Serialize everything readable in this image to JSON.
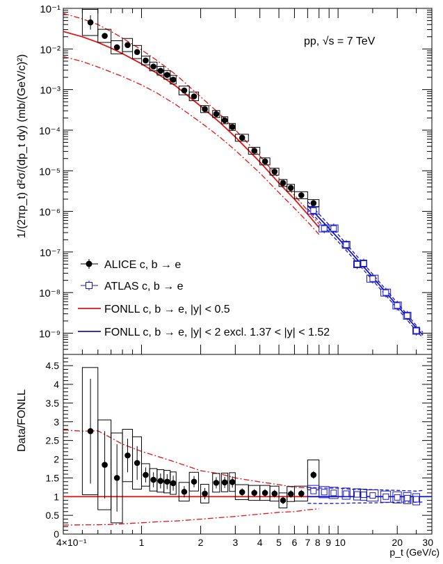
{
  "chart_data": [
    {
      "type": "scatter",
      "panel": "top",
      "annotation": "pp, √s = 7 TeV",
      "xlabel": "",
      "ylabel": "1/(2πp_t) d²σ/(dp_t dy) (mb/(GeV/c)²)",
      "xscale": "log",
      "yscale": "log",
      "xlim": [
        0.4,
        30
      ],
      "ylim": [
        3e-10,
        0.1
      ],
      "ytick_labels": [
        "10⁻⁹",
        "10⁻⁸",
        "10⁻⁷",
        "10⁻⁶",
        "10⁻⁵",
        "10⁻⁴",
        "10⁻³",
        "10⁻²",
        "10⁻¹"
      ],
      "legend_position": "bottom-left",
      "series": [
        {
          "name": "ALICE c, b → e",
          "marker": "filled-circle",
          "color": "#000000",
          "points": [
            {
              "x": 0.55,
              "y": 0.045
            },
            {
              "x": 0.65,
              "y": 0.021
            },
            {
              "x": 0.75,
              "y": 0.011
            },
            {
              "x": 0.85,
              "y": 0.0125
            },
            {
              "x": 0.95,
              "y": 0.0084
            },
            {
              "x": 1.05,
              "y": 0.0052
            },
            {
              "x": 1.15,
              "y": 0.0037
            },
            {
              "x": 1.25,
              "y": 0.0029
            },
            {
              "x": 1.35,
              "y": 0.0023
            },
            {
              "x": 1.45,
              "y": 0.00175
            },
            {
              "x": 1.65,
              "y": 0.00095
            },
            {
              "x": 1.85,
              "y": 0.00068
            },
            {
              "x": 2.1,
              "y": 0.00033
            },
            {
              "x": 2.4,
              "y": 0.00025
            },
            {
              "x": 2.65,
              "y": 0.000175
            },
            {
              "x": 2.9,
              "y": 0.00012
            },
            {
              "x": 3.25,
              "y": 6.5e-05
            },
            {
              "x": 3.75,
              "y": 3.1e-05
            },
            {
              "x": 4.25,
              "y": 1.7e-05
            },
            {
              "x": 4.75,
              "y": 9.5e-06
            },
            {
              "x": 5.25,
              "y": 5e-06
            },
            {
              "x": 5.75,
              "y": 3.8e-06
            },
            {
              "x": 6.5,
              "y": 2.5e-06
            },
            {
              "x": 7.5,
              "y": 1.6e-06
            }
          ]
        },
        {
          "name": "ATLAS c, b → e",
          "marker": "open-square",
          "color": "#1515c8",
          "points": [
            {
              "x": 7.5,
              "y": 1.05e-06
            },
            {
              "x": 8.5,
              "y": 3.8e-07
            },
            {
              "x": 9.5,
              "y": 3.8e-07
            },
            {
              "x": 11.0,
              "y": 1.5e-07
            },
            {
              "x": 12.5,
              "y": 5e-08
            },
            {
              "x": 13.5,
              "y": 5.2e-08
            },
            {
              "x": 15.0,
              "y": 2.2e-08
            },
            {
              "x": 17.5,
              "y": 1e-08
            },
            {
              "x": 20.0,
              "y": 4.8e-09
            },
            {
              "x": 22.5,
              "y": 2.7e-09
            },
            {
              "x": 25.0,
              "y": 1.15e-09
            }
          ]
        },
        {
          "name": "FONLL c, b → e, |y| < 0.5",
          "line": "solid",
          "color": "#e81010",
          "x": [
            0.4,
            0.5,
            0.6,
            0.7,
            0.8,
            1.0,
            1.2,
            1.5,
            2.0,
            2.5,
            3.0,
            4.0,
            5.0,
            6.0,
            7.0,
            8.0
          ],
          "central": [
            0.027,
            0.02,
            0.0145,
            0.0105,
            0.0077,
            0.0043,
            0.0025,
            0.0012,
            0.00039,
            0.000155,
            6.8e-05,
            1.65e-05,
            5e-06,
            2e-06,
            8.5e-07,
            4e-07
          ],
          "upper": [
            0.075,
            0.055,
            0.04,
            0.027,
            0.0185,
            0.0095,
            0.0052,
            0.0023,
            0.00066,
            0.00025,
            0.000102,
            2.3e-05,
            6.6e-06,
            2.5e-06,
            1.05e-06,
            4.9e-07
          ],
          "lower": [
            0.0065,
            0.0049,
            0.0036,
            0.0027,
            0.0021,
            0.0013,
            0.00082,
            0.00042,
            0.000155,
            6.8e-05,
            3.2e-05,
            8.8e-06,
            2.9e-06,
            1.2e-06,
            5.5e-07,
            2.7e-07
          ]
        },
        {
          "name": "FONLL c, b → e, |y| < 2 excl. 1.37 < |y| < 1.52",
          "line": "solid",
          "color": "#1515c8",
          "x": [
            7.0,
            8.0,
            10.0,
            12.0,
            15.0,
            20.0,
            25.0,
            27.0
          ],
          "central": [
            1.4e-06,
            7e-07,
            2.2e-07,
            8.2e-08,
            2.4e-08,
            4.8e-09,
            1.35e-09,
            9e-10
          ],
          "upper": [
            1.75e-06,
            8.6e-07,
            2.7e-07,
            9.8e-08,
            2.85e-08,
            5.6e-09,
            1.55e-09,
            1.05e-09
          ],
          "lower": [
            1.15e-06,
            5.7e-07,
            1.8e-07,
            6.8e-08,
            2e-08,
            4.1e-09,
            1.15e-09,
            7.7e-10
          ]
        }
      ]
    },
    {
      "type": "scatter",
      "panel": "bottom",
      "xlabel": "p_t (GeV/c)",
      "ylabel": "Data/FONLL",
      "xscale": "log",
      "xlim": [
        0.4,
        30
      ],
      "ylim": [
        0,
        4.8
      ],
      "x_tick_labels": [
        "4×10⁻¹",
        "1",
        "2",
        "3",
        "4",
        "5",
        "6",
        "7",
        "8",
        "9",
        "10",
        "20",
        "30"
      ],
      "y_tick_labels": [
        "0",
        "0.5",
        "1",
        "1.5",
        "2",
        "2.5",
        "3",
        "3.5",
        "4",
        "4.5"
      ],
      "series": [
        {
          "name": "ALICE c, b → e",
          "points": [
            {
              "x": 0.55,
              "y": 2.75
            },
            {
              "x": 0.65,
              "y": 1.85
            },
            {
              "x": 0.75,
              "y": 1.5
            },
            {
              "x": 0.85,
              "y": 2.1
            },
            {
              "x": 0.95,
              "y": 1.9
            },
            {
              "x": 1.05,
              "y": 1.58
            },
            {
              "x": 1.15,
              "y": 1.45
            },
            {
              "x": 1.25,
              "y": 1.42
            },
            {
              "x": 1.35,
              "y": 1.4
            },
            {
              "x": 1.45,
              "y": 1.36
            },
            {
              "x": 1.65,
              "y": 1.13
            },
            {
              "x": 1.85,
              "y": 1.4
            },
            {
              "x": 2.1,
              "y": 1.08
            },
            {
              "x": 2.4,
              "y": 1.37
            },
            {
              "x": 2.65,
              "y": 1.38
            },
            {
              "x": 2.9,
              "y": 1.39
            },
            {
              "x": 3.25,
              "y": 1.12
            },
            {
              "x": 3.75,
              "y": 1.1
            },
            {
              "x": 4.25,
              "y": 1.1
            },
            {
              "x": 4.75,
              "y": 1.08
            },
            {
              "x": 5.25,
              "y": 0.9
            },
            {
              "x": 5.75,
              "y": 1.07
            },
            {
              "x": 6.5,
              "y": 1.08
            },
            {
              "x": 7.5,
              "y": 1.58
            }
          ]
        },
        {
          "name": "ATLAS c, b → e",
          "points": [
            {
              "x": 7.5,
              "y": 1.15
            },
            {
              "x": 8.5,
              "y": 1.12
            },
            {
              "x": 9.5,
              "y": 1.1
            },
            {
              "x": 11.0,
              "y": 1.08
            },
            {
              "x": 12.5,
              "y": 1.06
            },
            {
              "x": 13.5,
              "y": 1.05
            },
            {
              "x": 15.0,
              "y": 1.03
            },
            {
              "x": 17.5,
              "y": 1.0
            },
            {
              "x": 20.0,
              "y": 0.98
            },
            {
              "x": 22.5,
              "y": 0.96
            },
            {
              "x": 25.0,
              "y": 0.93
            }
          ]
        }
      ]
    }
  ]
}
